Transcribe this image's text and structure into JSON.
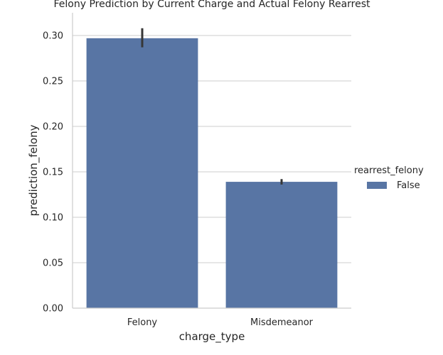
{
  "chart_data": {
    "type": "bar",
    "title": "Felony Prediction by Current Charge and Actual Felony Rearrest",
    "xlabel": "charge_type",
    "ylabel": "prediction_felony",
    "categories": [
      "Felony",
      "Misdemeanor"
    ],
    "series": [
      {
        "name": "False",
        "values": [
          0.297,
          0.139
        ],
        "error_low": [
          0.287,
          0.136
        ],
        "error_high": [
          0.308,
          0.142
        ]
      }
    ],
    "ylim": [
      0,
      0.325
    ],
    "yticks": [
      0.0,
      0.05,
      0.1,
      0.15,
      0.2,
      0.25,
      0.3
    ],
    "ytick_labels": [
      "0.00",
      "0.05",
      "0.10",
      "0.15",
      "0.20",
      "0.25",
      "0.30"
    ],
    "grid": "horizontal",
    "legend": {
      "title": "rearrest_felony",
      "placement": "right",
      "entries": [
        "False"
      ]
    },
    "colors": {
      "bar": "#5875a4",
      "error": "#363636",
      "grid": "#cccccc",
      "axis": "#cccccc"
    }
  }
}
